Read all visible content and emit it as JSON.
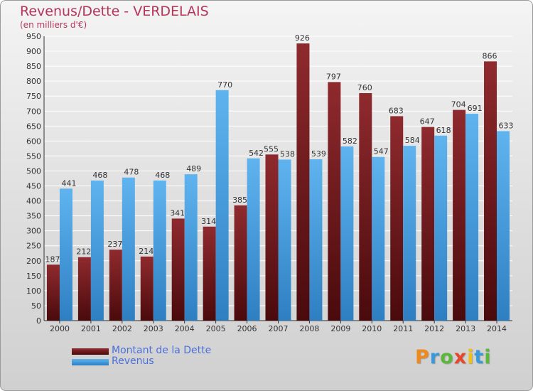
{
  "chart_data": {
    "type": "bar",
    "title": "Revenus/Dette - VERDELAIS",
    "subtitle": "(en milliers d'€)",
    "categories": [
      "2000",
      "2001",
      "2002",
      "2003",
      "2004",
      "2005",
      "2006",
      "2007",
      "2008",
      "2009",
      "2010",
      "2011",
      "2012",
      "2013",
      "2014"
    ],
    "series": [
      {
        "name": "Montant de la Dette",
        "color": "#7a1e22",
        "values": [
          187,
          212,
          237,
          214,
          341,
          314,
          385,
          555,
          926,
          797,
          760,
          683,
          647,
          704,
          866
        ]
      },
      {
        "name": "Revenus",
        "color": "#4aa3e6",
        "values": [
          441,
          468,
          478,
          468,
          489,
          770,
          542,
          538,
          539,
          582,
          547,
          584,
          618,
          691,
          633
        ]
      }
    ],
    "ylim": [
      0,
      950
    ],
    "ytick_step": 50,
    "grid": true,
    "legend_position": "bottom-left"
  },
  "logo": {
    "letters": [
      "P",
      "r",
      "o",
      "x",
      "i",
      "t",
      "i"
    ],
    "colors": [
      "#f08a1c",
      "#3a9ad9",
      "#5cb83a",
      "#e8462a",
      "#f0c018",
      "#3a9ad9",
      "#5cb83a"
    ]
  }
}
